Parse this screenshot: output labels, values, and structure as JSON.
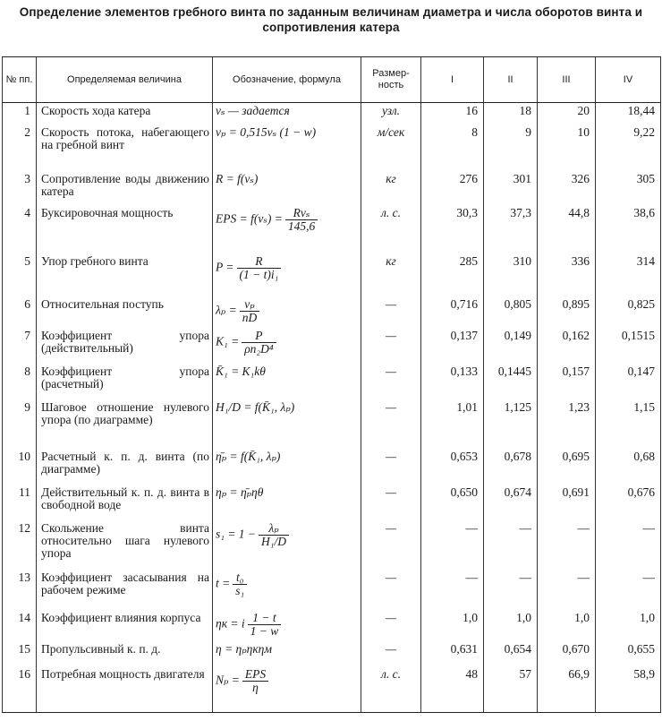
{
  "title": "Определение элементов гребного винта по заданным величинам диаметра и числа оборотов винта и сопротивления катера",
  "headers": [
    "№ пп.",
    "Определяемая величина",
    "Обозначение, формула",
    "Размер-ность",
    "I",
    "II",
    "III",
    "IV"
  ],
  "rows": [
    {
      "n": "1",
      "name": "Скорость хода катера",
      "lhs": "vₛ — задается",
      "num": "",
      "den": "",
      "unit": "узл.",
      "v": [
        "16",
        "18",
        "20",
        "18,44"
      ]
    },
    {
      "n": "2",
      "name": "Скорость потока, набегающего на гребной винт",
      "lhs": "vₚ = 0,515vₛ (1 − w)",
      "num": "",
      "den": "",
      "unit": "м/сек",
      "v": [
        "8",
        "9",
        "10",
        "9,22"
      ]
    },
    {
      "n": "3",
      "name": "Сопротивление воды движению катера",
      "lhs": "R = f(vₛ)",
      "num": "",
      "den": "",
      "unit": "кг",
      "v": [
        "276",
        "301",
        "326",
        "305"
      ]
    },
    {
      "n": "4",
      "name": "Буксировочная мощность",
      "lhs": "EPS = f(vₛ) =",
      "num": "Rvₛ",
      "den": "145,6",
      "unit": "л. с.",
      "v": [
        "30,3",
        "37,3",
        "44,8",
        "38,6"
      ]
    },
    {
      "n": "5",
      "name": "Упор гребного винта",
      "lhs": "P =",
      "num": "R",
      "den": "(1 − t)i₁",
      "unit": "кг",
      "v": [
        "285",
        "310",
        "336",
        "314"
      ]
    },
    {
      "n": "6",
      "name": "Относительная поступь",
      "lhs": "λₚ =",
      "num": "vₚ",
      "den": "nD",
      "unit": "—",
      "v": [
        "0,716",
        "0,805",
        "0,895",
        "0,825"
      ]
    },
    {
      "n": "7",
      "name": "Коэффициент упора (действительный)",
      "lhs": "K₁ =",
      "num": "P",
      "den": "ρn₂D⁴",
      "unit": "—",
      "v": [
        "0,137",
        "0,149",
        "0,162",
        "0,1515"
      ]
    },
    {
      "n": "8",
      "name": "Коэффициент упора (расчетный)",
      "lhs": "K̄₁ = K₁kθ",
      "num": "",
      "den": "",
      "unit": "—",
      "v": [
        "0,133",
        "0,1445",
        "0,157",
        "0,147"
      ]
    },
    {
      "n": "9",
      "name": "Шаговое отношение нулевого упора (по диаграмме)",
      "lhs": "H₁/D = f(K̄₁, λₚ)",
      "num": "",
      "den": "",
      "unit": "—",
      "v": [
        "1,01",
        "1,125",
        "1,23",
        "1,15"
      ]
    },
    {
      "n": "10",
      "name": "Расчетный к. п. д. винта (по диаграмме)",
      "lhs": "η̄ₚ = f(K̄₁, λₚ)",
      "num": "",
      "den": "",
      "unit": "—",
      "v": [
        "0,653",
        "0,678",
        "0,695",
        "0,68"
      ]
    },
    {
      "n": "11",
      "name": "Действительный к. п. д. винта в свободной воде",
      "lhs": "ηₚ = η̄ₚηθ",
      "num": "",
      "den": "",
      "unit": "—",
      "v": [
        "0,650",
        "0,674",
        "0,691",
        "0,676"
      ]
    },
    {
      "n": "12",
      "name": "Скольжение винта относительно шага нулевого упора",
      "lhs": "s₁ = 1 −",
      "num": "λₚ",
      "den": "H₁/D",
      "unit": "—",
      "v": [
        "—",
        "—",
        "—",
        "—"
      ]
    },
    {
      "n": "13",
      "name": "Коэффициент засасывания на рабочем режиме",
      "lhs": "t =",
      "num": "t₀",
      "den": "s₁",
      "unit": "—",
      "v": [
        "—",
        "—",
        "—",
        "—"
      ]
    },
    {
      "n": "14",
      "name": "Коэффициент влияния корпуса",
      "lhs": "ηк = i",
      "num": "1 − t",
      "den": "1 − w",
      "unit": "—",
      "v": [
        "1,0",
        "1,0",
        "1,0",
        "1,0"
      ]
    },
    {
      "n": "15",
      "name": "Пропульсивный к. п. д.",
      "lhs": "η = ηₚηкηм",
      "num": "",
      "den": "",
      "unit": "—",
      "v": [
        "0,631",
        "0,654",
        "0,670",
        "0,655"
      ]
    },
    {
      "n": "16",
      "name": "Потребная мощность двигателя",
      "lhs": "Nₚ =",
      "num": "EPS",
      "den": "η",
      "unit": "л. с.",
      "v": [
        "48",
        "57",
        "66,9",
        "58,9"
      ]
    }
  ]
}
